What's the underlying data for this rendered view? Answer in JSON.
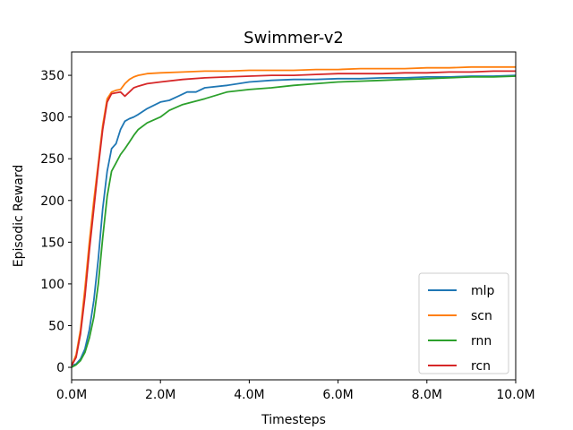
{
  "chart_data": {
    "type": "line",
    "title": "Swimmer-v2",
    "xlabel": "Timesteps",
    "ylabel": "Episodic Reward",
    "xlim": [
      0,
      10
    ],
    "ylim": [
      -15,
      378
    ],
    "x_unit": "M timesteps",
    "xticks": [
      0,
      2,
      4,
      6,
      8,
      10
    ],
    "xtick_labels": [
      "0.0M",
      "2.0M",
      "4.0M",
      "6.0M",
      "8.0M",
      "10.0M"
    ],
    "yticks": [
      0,
      50,
      100,
      150,
      200,
      250,
      300,
      350
    ],
    "ytick_labels": [
      "0",
      "50",
      "100",
      "150",
      "200",
      "250",
      "300",
      "350"
    ],
    "grid": false,
    "legend_position": "bottom-right",
    "series": [
      {
        "name": "mlp",
        "color": "#1f77b4",
        "x": [
          0,
          0.1,
          0.2,
          0.3,
          0.4,
          0.5,
          0.6,
          0.7,
          0.8,
          0.9,
          1.0,
          1.1,
          1.2,
          1.3,
          1.4,
          1.5,
          1.7,
          2.0,
          2.2,
          2.4,
          2.6,
          2.8,
          3.0,
          3.5,
          4.0,
          4.5,
          5.0,
          5.5,
          6.0,
          6.5,
          7.0,
          7.5,
          8.0,
          8.5,
          9.0,
          9.5,
          10.0
        ],
        "values": [
          2,
          4,
          10,
          22,
          45,
          80,
          130,
          190,
          235,
          262,
          268,
          285,
          295,
          298,
          300,
          303,
          310,
          318,
          320,
          325,
          330,
          330,
          335,
          338,
          342,
          344,
          345,
          345,
          346,
          346,
          347,
          347,
          348,
          348,
          349,
          349,
          350
        ]
      },
      {
        "name": "scn",
        "color": "#ff7f0e",
        "x": [
          0,
          0.1,
          0.2,
          0.3,
          0.4,
          0.5,
          0.6,
          0.7,
          0.8,
          0.9,
          1.0,
          1.1,
          1.2,
          1.3,
          1.4,
          1.5,
          1.7,
          2.0,
          2.5,
          3.0,
          3.5,
          4.0,
          4.5,
          5.0,
          5.5,
          6.0,
          6.5,
          7.0,
          7.5,
          8.0,
          8.5,
          9.0,
          9.5,
          10.0
        ],
        "values": [
          2,
          15,
          45,
          95,
          150,
          200,
          245,
          290,
          322,
          330,
          332,
          333,
          340,
          345,
          348,
          350,
          352,
          353,
          354,
          355,
          355,
          356,
          356,
          356,
          357,
          357,
          358,
          358,
          358,
          359,
          359,
          360,
          360,
          360
        ]
      },
      {
        "name": "rnn",
        "color": "#2ca02c",
        "x": [
          0,
          0.1,
          0.2,
          0.3,
          0.4,
          0.5,
          0.6,
          0.7,
          0.8,
          0.9,
          1.0,
          1.1,
          1.2,
          1.3,
          1.4,
          1.5,
          1.7,
          2.0,
          2.2,
          2.5,
          3.0,
          3.5,
          4.0,
          4.5,
          5.0,
          5.5,
          6.0,
          6.5,
          7.0,
          7.5,
          8.0,
          8.5,
          9.0,
          9.5,
          10.0
        ],
        "values": [
          0,
          3,
          8,
          18,
          35,
          60,
          100,
          155,
          205,
          235,
          245,
          255,
          262,
          270,
          278,
          285,
          293,
          300,
          308,
          315,
          322,
          330,
          333,
          335,
          338,
          340,
          342,
          343,
          344,
          345,
          346,
          347,
          348,
          348,
          349
        ]
      },
      {
        "name": "rcn",
        "color": "#d62728",
        "x": [
          0,
          0.1,
          0.2,
          0.3,
          0.4,
          0.5,
          0.6,
          0.7,
          0.8,
          0.9,
          1.0,
          1.1,
          1.2,
          1.3,
          1.4,
          1.5,
          1.7,
          2.0,
          2.5,
          3.0,
          3.5,
          4.0,
          4.5,
          5.0,
          5.5,
          6.0,
          6.5,
          7.0,
          7.5,
          8.0,
          8.5,
          9.0,
          9.5,
          10.0
        ],
        "values": [
          2,
          12,
          40,
          85,
          140,
          190,
          240,
          285,
          318,
          328,
          329,
          330,
          325,
          330,
          335,
          337,
          340,
          342,
          345,
          347,
          348,
          349,
          350,
          350,
          351,
          352,
          352,
          352,
          353,
          353,
          354,
          354,
          355,
          355
        ]
      }
    ]
  }
}
